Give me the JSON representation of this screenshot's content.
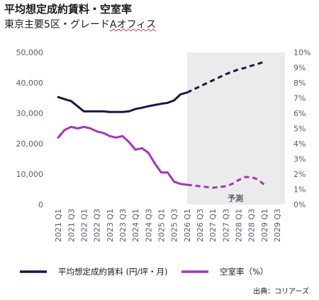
{
  "title": "平均想定成約賃料・空室率",
  "subtitle_main": "東京主要5区・グレード",
  "subtitle_tail": "Aオフィス",
  "source": "出典：コリアーズ",
  "chart_data": {
    "type": "line",
    "x_labels": [
      "2021 Q1",
      "2021 Q3",
      "2022 Q1",
      "2022 Q3",
      "2023 Q1",
      "2023 Q3",
      "2024 Q1",
      "2024 Q3",
      "2025 Q1",
      "2025 Q3",
      "2026 Q1",
      "2026 Q3",
      "2027 Q1",
      "2027 Q3",
      "2028 Q1",
      "2028 Q3",
      "2029 Q1",
      "2029 Q3"
    ],
    "y_left": {
      "min": 0,
      "max": 50000,
      "ticks": [
        "0",
        "10,000",
        "20,000",
        "30,000",
        "40,000",
        "50,000"
      ]
    },
    "y_right": {
      "min": 0,
      "max": 10,
      "ticks": [
        "0%",
        "1%",
        "2%",
        "3%",
        "4%",
        "5%",
        "6%",
        "7%",
        "8%",
        "9%",
        "10%"
      ]
    },
    "forecast_start_index": 20,
    "forecast_label": "予測",
    "series": [
      {
        "name": "平均想定成約賃料 (円/坪・月)",
        "axis": "left",
        "color": "#14194a",
        "values": [
          35300,
          34600,
          34000,
          32300,
          30600,
          30600,
          30600,
          30600,
          30400,
          30400,
          30400,
          30600,
          31400,
          31800,
          32300,
          32700,
          33100,
          33400,
          34200,
          36200,
          36800,
          37800,
          38800,
          39800,
          40800,
          41800,
          42800,
          43600,
          44400,
          44900,
          45600,
          46200,
          46900
        ]
      },
      {
        "name": "空室率（%）",
        "axis": "right",
        "color": "#a436b8",
        "values": [
          4.4,
          4.9,
          5.1,
          5.0,
          5.1,
          5.0,
          4.8,
          4.7,
          4.5,
          4.4,
          4.5,
          4.1,
          3.6,
          3.7,
          3.4,
          2.7,
          2.1,
          2.1,
          1.5,
          1.35,
          1.3,
          1.25,
          1.2,
          1.15,
          1.1,
          1.15,
          1.2,
          1.35,
          1.6,
          1.8,
          1.8,
          1.65,
          1.3
        ]
      }
    ]
  }
}
